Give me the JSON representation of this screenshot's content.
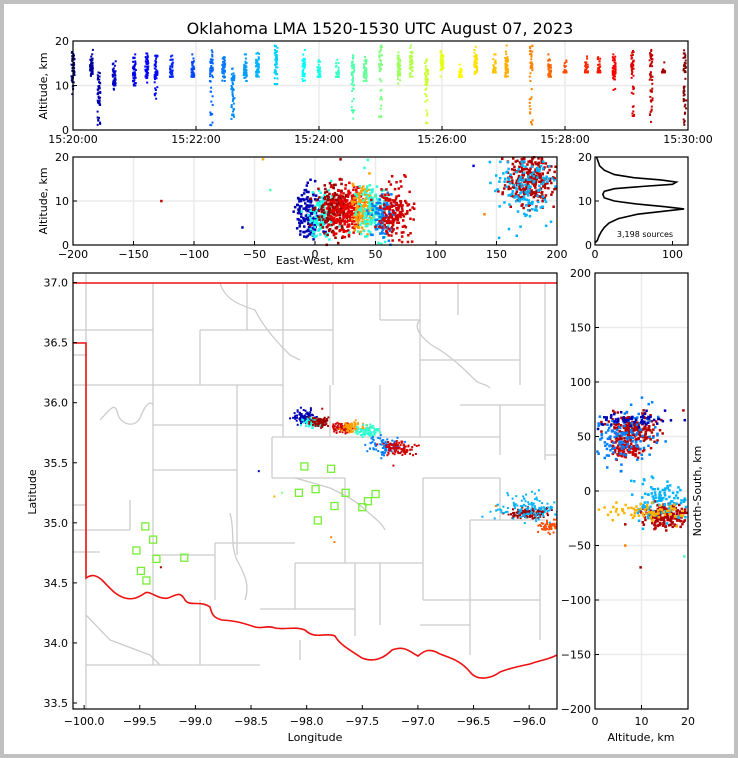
{
  "title": "Oklahoma LMA 1520-1530 UTC August 07, 2023",
  "chart_data": [
    {
      "id": "time-altitude",
      "type": "scatter",
      "xlabel": "",
      "ylabel": "Altitude, km",
      "xlim_minutes": [
        0,
        10
      ],
      "ylim": [
        0,
        20
      ],
      "x_ticks": [
        "15:20:00",
        "15:22:00",
        "15:24:00",
        "15:26:00",
        "15:28:00",
        "15:30:00"
      ],
      "y_ticks": [
        "0",
        "10",
        "20"
      ],
      "grid": true,
      "color_by": "time",
      "columns": [
        {
          "t": 0.0,
          "lo": 8,
          "hi": 18
        },
        {
          "t": 0.3,
          "lo": 10,
          "hi": 18
        },
        {
          "t": 0.42,
          "lo": 1,
          "hi": 13
        },
        {
          "t": 0.67,
          "lo": 7,
          "hi": 16
        },
        {
          "t": 1.0,
          "lo": 10,
          "hi": 17
        },
        {
          "t": 1.2,
          "lo": 10,
          "hi": 18
        },
        {
          "t": 1.35,
          "lo": 7,
          "hi": 17
        },
        {
          "t": 1.6,
          "lo": 12,
          "hi": 17
        },
        {
          "t": 1.95,
          "lo": 12,
          "hi": 17
        },
        {
          "t": 2.25,
          "lo": 1,
          "hi": 18
        },
        {
          "t": 2.45,
          "lo": 11,
          "hi": 18
        },
        {
          "t": 2.6,
          "lo": 2,
          "hi": 14
        },
        {
          "t": 2.8,
          "lo": 11,
          "hi": 17
        },
        {
          "t": 3.0,
          "lo": 12,
          "hi": 18
        },
        {
          "t": 3.3,
          "lo": 9,
          "hi": 19
        },
        {
          "t": 3.75,
          "lo": 11,
          "hi": 18
        },
        {
          "t": 4.0,
          "lo": 12,
          "hi": 16
        },
        {
          "t": 4.3,
          "lo": 12,
          "hi": 16
        },
        {
          "t": 4.55,
          "lo": 2,
          "hi": 17
        },
        {
          "t": 4.75,
          "lo": 11,
          "hi": 17
        },
        {
          "t": 5.0,
          "lo": 2,
          "hi": 19
        },
        {
          "t": 5.3,
          "lo": 10,
          "hi": 18
        },
        {
          "t": 5.5,
          "lo": 12,
          "hi": 19
        },
        {
          "t": 5.75,
          "lo": 1,
          "hi": 16
        },
        {
          "t": 6.0,
          "lo": 12,
          "hi": 19
        },
        {
          "t": 6.3,
          "lo": 12,
          "hi": 16
        },
        {
          "t": 6.55,
          "lo": 12,
          "hi": 19
        },
        {
          "t": 6.85,
          "lo": 13,
          "hi": 17
        },
        {
          "t": 7.05,
          "lo": 12,
          "hi": 19
        },
        {
          "t": 7.45,
          "lo": 1,
          "hi": 19
        },
        {
          "t": 7.75,
          "lo": 12,
          "hi": 17
        },
        {
          "t": 8.0,
          "lo": 13,
          "hi": 16
        },
        {
          "t": 8.35,
          "lo": 13,
          "hi": 17
        },
        {
          "t": 8.55,
          "lo": 13,
          "hi": 17
        },
        {
          "t": 8.8,
          "lo": 9,
          "hi": 17
        },
        {
          "t": 9.1,
          "lo": 3,
          "hi": 18
        },
        {
          "t": 9.4,
          "lo": 1,
          "hi": 18
        },
        {
          "t": 9.6,
          "lo": 13,
          "hi": 16
        },
        {
          "t": 9.95,
          "lo": 1,
          "hi": 19
        }
      ]
    },
    {
      "id": "eastwest-altitude",
      "type": "scatter",
      "xlabel": "East-West, km",
      "ylabel": "Altitude, km",
      "xlim": [
        -200,
        200
      ],
      "ylim": [
        0,
        20
      ],
      "x_ticks": [
        "−200",
        "−150",
        "−100",
        "−50",
        "0",
        "50",
        "100",
        "150",
        "200"
      ],
      "y_ticks": [
        "0",
        "10",
        "20"
      ],
      "grid": true,
      "clusters": [
        {
          "x": -5,
          "y": 7,
          "sx": 5,
          "sy": 3,
          "n": 160,
          "t": 0.05
        },
        {
          "x": 5,
          "y": 7,
          "sx": 6,
          "sy": 3,
          "n": 120,
          "t": 0.4
        },
        {
          "x": 15,
          "y": 8,
          "sx": 7,
          "sy": 3,
          "n": 200,
          "t": 0.97
        },
        {
          "x": 28,
          "y": 8,
          "sx": 7,
          "sy": 3,
          "n": 200,
          "t": 0.9
        },
        {
          "x": 38,
          "y": 8,
          "sx": 5,
          "sy": 2.5,
          "n": 120,
          "t": 0.72
        },
        {
          "x": 47,
          "y": 8,
          "sx": 6,
          "sy": 3,
          "n": 150,
          "t": 0.42
        },
        {
          "x": 55,
          "y": 7,
          "sx": 5,
          "sy": 3,
          "n": 90,
          "t": 0.25
        },
        {
          "x": 66,
          "y": 7.5,
          "sx": 7,
          "sy": 3,
          "n": 170,
          "t": 0.92
        },
        {
          "x": 178,
          "y": 15,
          "sx": 10,
          "sy": 3,
          "n": 280,
          "t": 0.95
        },
        {
          "x": 175,
          "y": 13,
          "sx": 12,
          "sy": 4,
          "n": 150,
          "t": 0.3
        }
      ]
    },
    {
      "id": "altitude-histogram",
      "type": "line",
      "xlim": [
        0,
        120
      ],
      "ylim": [
        0,
        20
      ],
      "x_ticks": [
        "0",
        "100"
      ],
      "y_ticks": [
        "0",
        "10",
        "20"
      ],
      "annotation": "3,198 sources",
      "points": [
        [
          0,
          0.5
        ],
        [
          3,
          1
        ],
        [
          5,
          2
        ],
        [
          8,
          3
        ],
        [
          12,
          4
        ],
        [
          18,
          5
        ],
        [
          30,
          6
        ],
        [
          55,
          7
        ],
        [
          95,
          7.8
        ],
        [
          115,
          8.2
        ],
        [
          90,
          8.7
        ],
        [
          55,
          9.3
        ],
        [
          25,
          10
        ],
        [
          12,
          10.7
        ],
        [
          10,
          11.5
        ],
        [
          12,
          12.2
        ],
        [
          25,
          12.8
        ],
        [
          60,
          13.3
        ],
        [
          100,
          13.8
        ],
        [
          105,
          14.3
        ],
        [
          85,
          14.8
        ],
        [
          50,
          15.3
        ],
        [
          25,
          16
        ],
        [
          12,
          17
        ],
        [
          6,
          18
        ],
        [
          4,
          19
        ],
        [
          2,
          20
        ]
      ]
    },
    {
      "id": "plan-view-map",
      "type": "scatter",
      "xlabel": "Longitude",
      "ylabel": "Latitude",
      "xlim": [
        -100.1,
        -95.75
      ],
      "ylim": [
        33.45,
        37.08
      ],
      "x_ticks": [
        "−100.0",
        "−99.5",
        "−99.0",
        "−98.5",
        "−98.0",
        "−97.5",
        "−97.0",
        "−96.5",
        "−96.0"
      ],
      "y_ticks": [
        "33.5",
        "34.0",
        "34.5",
        "35.0",
        "35.5",
        "36.0",
        "36.5",
        "37.0"
      ],
      "stations": [
        [
          -99.53,
          34.77
        ],
        [
          -99.45,
          34.97
        ],
        [
          -99.38,
          34.86
        ],
        [
          -99.49,
          34.6
        ],
        [
          -99.44,
          34.52
        ],
        [
          -99.35,
          34.7
        ],
        [
          -99.1,
          34.71
        ],
        [
          -98.07,
          35.25
        ],
        [
          -98.02,
          35.47
        ],
        [
          -97.92,
          35.28
        ],
        [
          -97.9,
          35.02
        ],
        [
          -97.78,
          35.45
        ],
        [
          -97.75,
          35.14
        ],
        [
          -97.65,
          35.25
        ],
        [
          -97.5,
          35.13
        ],
        [
          -97.45,
          35.18
        ],
        [
          -97.38,
          35.24
        ]
      ],
      "clusters": [
        {
          "lon": -98.02,
          "lat": 35.88,
          "slon": 0.05,
          "slat": 0.03,
          "n": 80,
          "t": 0.05
        },
        {
          "lon": -97.95,
          "lat": 35.83,
          "slon": 0.04,
          "slat": 0.02,
          "n": 60,
          "t": 0.4
        },
        {
          "lon": -97.87,
          "lat": 35.84,
          "slon": 0.05,
          "slat": 0.02,
          "n": 80,
          "t": 0.97
        },
        {
          "lon": -97.68,
          "lat": 35.79,
          "slon": 0.05,
          "slat": 0.02,
          "n": 80,
          "t": 0.92
        },
        {
          "lon": -97.58,
          "lat": 35.8,
          "slon": 0.05,
          "slat": 0.02,
          "n": 70,
          "t": 0.72
        },
        {
          "lon": -97.45,
          "lat": 35.76,
          "slon": 0.05,
          "slat": 0.03,
          "n": 70,
          "t": 0.42
        },
        {
          "lon": -97.3,
          "lat": 35.64,
          "slon": 0.08,
          "slat": 0.04,
          "n": 90,
          "t": 0.25
        },
        {
          "lon": -97.18,
          "lat": 35.62,
          "slon": 0.07,
          "slat": 0.03,
          "n": 90,
          "t": 0.92
        },
        {
          "lon": -96.0,
          "lat": 35.08,
          "slon": 0.08,
          "slat": 0.02,
          "n": 120,
          "t": 0.97
        },
        {
          "lon": -96.0,
          "lat": 35.12,
          "slon": 0.14,
          "slat": 0.06,
          "n": 120,
          "t": 0.3
        },
        {
          "lon": -95.8,
          "lat": 34.97,
          "slon": 0.06,
          "slat": 0.03,
          "n": 60,
          "t": 0.8
        }
      ]
    },
    {
      "id": "altitude-northsouth",
      "type": "scatter",
      "xlabel": "Altitude, km",
      "ylabel": "North-South, km",
      "xlim": [
        0,
        20
      ],
      "ylim": [
        -200,
        200
      ],
      "x_ticks": [
        "0",
        "10",
        "20"
      ],
      "y_ticks": [
        "−200",
        "−150",
        "−100",
        "−50",
        "0",
        "50",
        "100",
        "150",
        "200"
      ],
      "grid": true,
      "clusters": [
        {
          "x": 8,
          "y": 57,
          "sx": 2.5,
          "sy": 6,
          "n": 200,
          "t": 0.95
        },
        {
          "x": 7,
          "y": 38,
          "sx": 2,
          "sy": 5,
          "n": 90,
          "t": 0.93
        },
        {
          "x": 6,
          "y": 50,
          "sx": 4,
          "sy": 12,
          "n": 150,
          "t": 0.25
        },
        {
          "x": 7,
          "y": 65,
          "sx": 4,
          "sy": 3,
          "n": 60,
          "t": 0.05
        },
        {
          "x": 15,
          "y": -22,
          "sx": 2.5,
          "sy": 5,
          "n": 200,
          "t": 0.95
        },
        {
          "x": 14,
          "y": -10,
          "sx": 3,
          "sy": 10,
          "n": 120,
          "t": 0.3
        },
        {
          "x": 12,
          "y": -20,
          "sx": 5,
          "sy": 4,
          "n": 80,
          "t": 0.7
        }
      ]
    }
  ]
}
